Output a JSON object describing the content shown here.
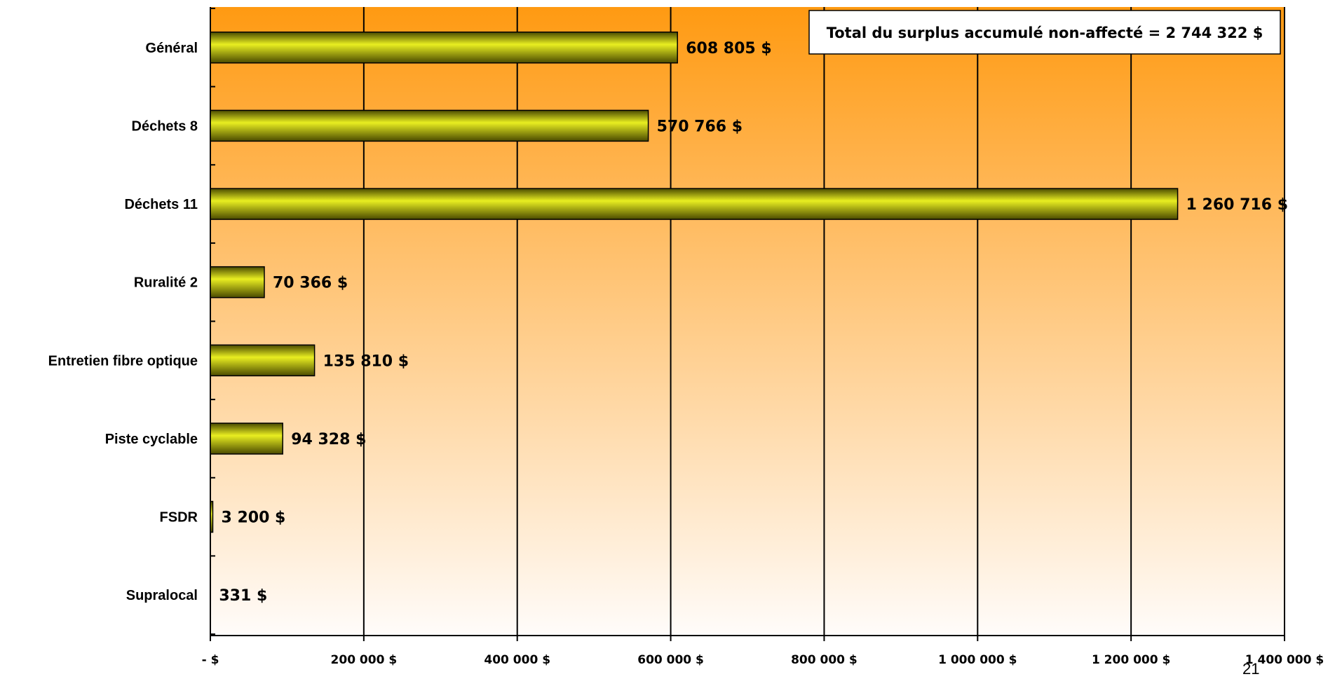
{
  "colors": {
    "plot_top": "#ff9a12",
    "plot_bottom": "#fffcfa",
    "bar_light": "#e9ee21",
    "bar_dark": "#4a4a00",
    "bar_stroke": "#000000",
    "grid": "#000000"
  },
  "page_number": "21",
  "chart_data": {
    "type": "bar",
    "orientation": "horizontal",
    "title": "",
    "xlabel": "",
    "ylabel": "",
    "xlim": [
      0,
      1400000
    ],
    "grid": true,
    "categories": [
      "Général",
      "Déchets 8",
      "Déchets 11",
      "Ruralité 2",
      "Entretien fibre optique",
      "Piste cyclable",
      "FSDR",
      "Supralocal"
    ],
    "values": [
      608805,
      570766,
      1260716,
      70366,
      135810,
      94328,
      3200,
      331
    ],
    "data_labels": [
      "608 805 $",
      "570 766 $",
      "1 260 716 $",
      "70 366 $",
      "135 810 $",
      "94 328 $",
      "3 200 $",
      "331 $"
    ],
    "x_ticks": [
      0,
      200000,
      400000,
      600000,
      800000,
      1000000,
      1200000,
      1400000
    ],
    "x_tick_labels": [
      "- $",
      "200 000  $",
      "400 000  $",
      "600 000  $",
      "800 000  $",
      "1 000 000  $",
      "1 200 000  $",
      "1 400 000  $"
    ],
    "annotation": "Total du surplus accumulé non-affecté = 2 744 322 $"
  }
}
